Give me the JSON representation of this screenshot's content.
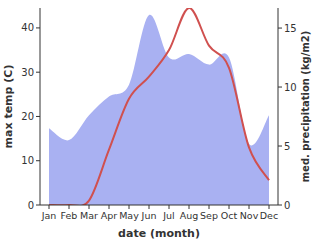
{
  "chart_data": {
    "type": "line",
    "x_label": "date (month)",
    "y_label": "max temp (C)",
    "y2_label": "med. precipitation (kg/m2)",
    "categories": [
      "Jan",
      "Feb",
      "Mar",
      "Apr",
      "May",
      "Jun",
      "Jul",
      "Aug",
      "Sep",
      "Oct",
      "Nov",
      "Dec"
    ],
    "ylim": [
      0,
      44.5
    ],
    "yticks": [
      0,
      10,
      20,
      30,
      40
    ],
    "y2lim": [
      0,
      16.7
    ],
    "y2ticks": [
      0,
      5,
      10,
      15
    ],
    "series": [
      {
        "type": "area",
        "axis": "y2",
        "color": "#a9b1f2",
        "values": [
          6.5,
          5.5,
          7.6,
          9.2,
          10.2,
          16.1,
          12.5,
          12.8,
          11.9,
          12.5,
          5.2,
          7.6
        ]
      },
      {
        "type": "line",
        "color": "#d0504f",
        "values": [
          0,
          0,
          1,
          12.5,
          24,
          29,
          35,
          44.5,
          36,
          31,
          13,
          5.6
        ]
      }
    ]
  }
}
